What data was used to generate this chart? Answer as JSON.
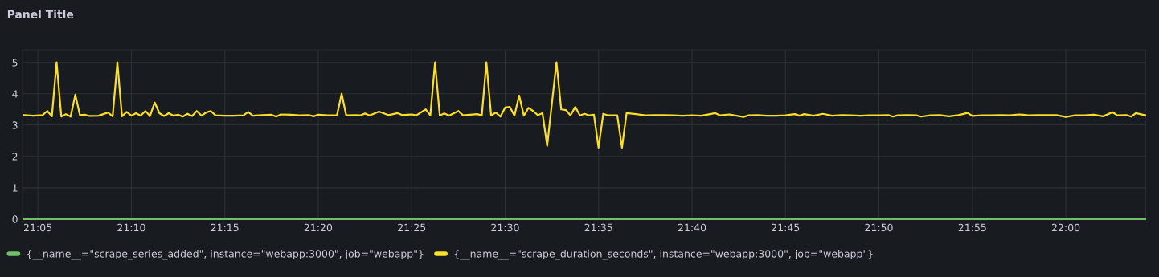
{
  "chart_data": {
    "type": "line",
    "title": "Panel Title",
    "x": [
      21.0708,
      21.0792,
      21.0875,
      21.0917,
      21.0958,
      21.1,
      21.1042,
      21.1083,
      21.1125,
      21.1167,
      21.1208,
      21.125,
      21.1292,
      21.1375,
      21.1458,
      21.15,
      21.1542,
      21.1583,
      21.1625,
      21.1667,
      21.1708,
      21.175,
      21.1792,
      21.1833,
      21.1875,
      21.1917,
      21.1958,
      21.2,
      21.2042,
      21.2083,
      21.2125,
      21.2167,
      21.2208,
      21.225,
      21.2292,
      21.2333,
      21.2375,
      21.2417,
      21.25,
      21.2583,
      21.2667,
      21.2708,
      21.275,
      21.2833,
      21.2917,
      21.2958,
      21.3,
      21.3083,
      21.3167,
      21.325,
      21.3292,
      21.3333,
      21.3417,
      21.35,
      21.3542,
      21.3583,
      21.3667,
      21.3708,
      21.375,
      21.3792,
      21.3875,
      21.3958,
      21.4042,
      21.4083,
      21.4167,
      21.4208,
      21.4292,
      21.4333,
      21.4375,
      21.4417,
      21.4458,
      21.45,
      21.4583,
      21.4625,
      21.475,
      21.4792,
      21.4833,
      21.4875,
      21.4917,
      21.4958,
      21.5,
      21.5042,
      21.5083,
      21.5125,
      21.5167,
      21.5208,
      21.525,
      21.5292,
      21.5333,
      21.5375,
      21.5458,
      21.55,
      21.5542,
      21.5583,
      21.5625,
      21.5667,
      21.5708,
      21.575,
      21.5792,
      21.5833,
      21.5875,
      21.5917,
      21.6,
      21.6042,
      21.6083,
      21.6167,
      21.625,
      21.6333,
      21.6417,
      21.65,
      21.6583,
      21.6667,
      21.675,
      21.6875,
      21.6917,
      21.7,
      21.7042,
      21.7125,
      21.7167,
      21.725,
      21.7333,
      21.7417,
      21.75,
      21.7583,
      21.7625,
      21.7667,
      21.775,
      21.7833,
      21.7917,
      21.8,
      21.8083,
      21.8167,
      21.825,
      21.8333,
      21.8417,
      21.8458,
      21.85,
      21.8583,
      21.8667,
      21.8708,
      21.8792,
      21.8875,
      21.8958,
      21.9042,
      21.9125,
      21.9167,
      21.925,
      21.9333,
      21.9417,
      21.95,
      21.9583,
      21.9667,
      21.975,
      21.9833,
      21.9917,
      22.0,
      22.0083,
      22.0167,
      22.025,
      22.0333,
      22.0417,
      22.0458,
      22.0542,
      22.0583,
      22.0625,
      22.0708
    ],
    "series": [
      {
        "name": "{__name__=\"scrape_series_added\", instance=\"webapp:3000\", job=\"webapp\"}",
        "color": "#73bf69",
        "x": [
          21.0708,
          22.0708
        ],
        "values": [
          0,
          0
        ]
      },
      {
        "name": "{__name__=\"scrape_duration_seconds\", instance=\"webapp:3000\", job=\"webapp\"}",
        "color": "#fade2a",
        "values": [
          3.32,
          3.3,
          3.32,
          3.45,
          3.28,
          5.0,
          3.27,
          3.35,
          3.27,
          3.97,
          3.32,
          3.33,
          3.29,
          3.3,
          3.4,
          3.28,
          5.0,
          3.28,
          3.42,
          3.3,
          3.38,
          3.3,
          3.45,
          3.29,
          3.72,
          3.38,
          3.29,
          3.38,
          3.3,
          3.33,
          3.27,
          3.36,
          3.29,
          3.45,
          3.3,
          3.4,
          3.45,
          3.31,
          3.3,
          3.3,
          3.31,
          3.42,
          3.3,
          3.32,
          3.33,
          3.27,
          3.34,
          3.33,
          3.31,
          3.32,
          3.28,
          3.33,
          3.31,
          3.31,
          4.0,
          3.31,
          3.32,
          3.31,
          3.37,
          3.31,
          3.43,
          3.32,
          3.38,
          3.32,
          3.34,
          3.31,
          3.5,
          3.31,
          5.0,
          3.31,
          3.37,
          3.3,
          3.45,
          3.31,
          3.35,
          3.31,
          5.0,
          3.31,
          3.4,
          3.27,
          3.56,
          3.58,
          3.3,
          3.94,
          3.3,
          3.55,
          3.45,
          3.32,
          3.38,
          2.34,
          5.0,
          3.5,
          3.48,
          3.31,
          3.58,
          3.31,
          3.36,
          3.31,
          3.33,
          2.28,
          3.36,
          3.31,
          3.31,
          2.28,
          3.38,
          3.35,
          3.31,
          3.32,
          3.32,
          3.31,
          3.3,
          3.31,
          3.3,
          3.38,
          3.31,
          3.34,
          3.31,
          3.26,
          3.31,
          3.32,
          3.3,
          3.3,
          3.31,
          3.35,
          3.3,
          3.35,
          3.3,
          3.36,
          3.3,
          3.32,
          3.31,
          3.3,
          3.31,
          3.31,
          3.32,
          3.27,
          3.31,
          3.32,
          3.31,
          3.27,
          3.31,
          3.32,
          3.28,
          3.32,
          3.39,
          3.29,
          3.31,
          3.31,
          3.32,
          3.31,
          3.34,
          3.31,
          3.32,
          3.32,
          3.32,
          3.26,
          3.31,
          3.31,
          3.33,
          3.28,
          3.41,
          3.31,
          3.32,
          3.27,
          3.38,
          3.31
        ]
      }
    ],
    "xlim": [
      21.0697,
      22.0712
    ],
    "ylim": [
      0,
      5.4
    ],
    "xticks": [
      {
        "value": 21.0833,
        "label": "21:05"
      },
      {
        "value": 21.1667,
        "label": "21:10"
      },
      {
        "value": 21.25,
        "label": "21:15"
      },
      {
        "value": 21.3333,
        "label": "21:20"
      },
      {
        "value": 21.4167,
        "label": "21:25"
      },
      {
        "value": 21.5,
        "label": "21:30"
      },
      {
        "value": 21.5833,
        "label": "21:35"
      },
      {
        "value": 21.6667,
        "label": "21:40"
      },
      {
        "value": 21.75,
        "label": "21:45"
      },
      {
        "value": 21.8333,
        "label": "21:50"
      },
      {
        "value": 21.9167,
        "label": "21:55"
      },
      {
        "value": 22.0,
        "label": "22:00"
      }
    ],
    "yticks": [
      0,
      1,
      2,
      3,
      4,
      5
    ],
    "grid": true,
    "legend": "bottom",
    "marker": "none",
    "line_style": "solid"
  }
}
